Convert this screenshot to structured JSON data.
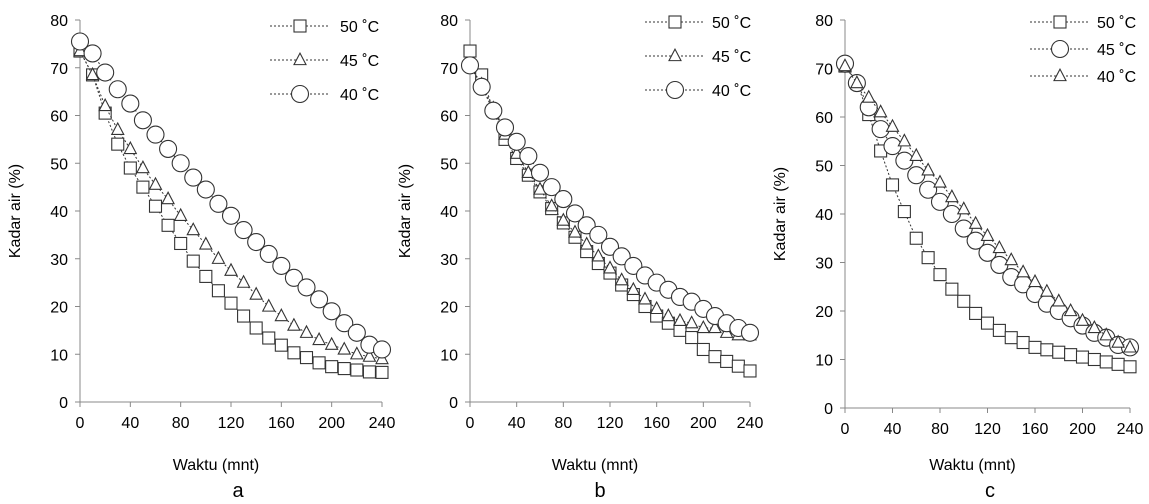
{
  "chart_data": [
    {
      "type": "line",
      "panel_label": "a",
      "xlabel": "Waktu (mnt)",
      "ylabel": "Kadar air  (%)",
      "xlim": [
        0,
        240
      ],
      "ylim": [
        0,
        80
      ],
      "xticks": [
        "0",
        "40",
        "80",
        "120",
        "160",
        "200",
        "240"
      ],
      "yticks": [
        "0",
        "10",
        "20",
        "30",
        "40",
        "50",
        "60",
        "70",
        "80"
      ],
      "legend_position": "top-right",
      "grid": false,
      "x": [
        0,
        10,
        20,
        30,
        40,
        50,
        60,
        70,
        80,
        90,
        100,
        110,
        120,
        130,
        140,
        150,
        160,
        170,
        180,
        190,
        200,
        210,
        220,
        230,
        240
      ],
      "series": [
        {
          "name": "50  ˚C",
          "marker": "square",
          "values": [
            73.5,
            68.5,
            60.5,
            54,
            49,
            45,
            41,
            37,
            33.2,
            29.5,
            26.3,
            23.3,
            20.7,
            18,
            15.5,
            13.4,
            11.9,
            10.3,
            9.3,
            8.2,
            7.4,
            7,
            6.7,
            6.3,
            6.2
          ]
        },
        {
          "name": "45 ˚C",
          "marker": "triangle",
          "values": [
            73.5,
            68.5,
            62,
            57,
            53,
            49,
            45.5,
            42.5,
            39,
            36,
            33,
            30,
            27.5,
            25,
            22.5,
            20,
            18,
            16,
            14.5,
            13,
            12,
            11,
            10,
            9.5,
            9
          ]
        },
        {
          "name": "40 ˚C",
          "marker": "circle",
          "values": [
            75.5,
            73,
            69,
            65.5,
            62.5,
            59,
            56,
            53,
            50,
            47,
            44.5,
            41.5,
            39,
            36,
            33.5,
            31,
            28.5,
            26,
            24,
            21.5,
            19,
            16.5,
            14.5,
            12,
            11
          ]
        }
      ]
    },
    {
      "type": "line",
      "panel_label": "b",
      "xlabel": "Waktu (mnt)",
      "ylabel": "Kadar air  (%)",
      "xlim": [
        0,
        240
      ],
      "ylim": [
        0,
        80
      ],
      "xticks": [
        "0",
        "40",
        "80",
        "120",
        "160",
        "200",
        "240"
      ],
      "yticks": [
        "0",
        "10",
        "20",
        "30",
        "40",
        "50",
        "60",
        "70",
        "80"
      ],
      "legend_position": "top-right",
      "grid": false,
      "x": [
        0,
        10,
        20,
        30,
        40,
        50,
        60,
        70,
        80,
        90,
        100,
        110,
        120,
        130,
        140,
        150,
        160,
        170,
        180,
        190,
        200,
        210,
        220,
        230,
        240
      ],
      "series": [
        {
          "name": "50  ˚C",
          "marker": "square",
          "values": [
            73.5,
            68.5,
            61,
            55,
            51,
            47.5,
            44,
            40.5,
            37.5,
            34.5,
            31.5,
            29,
            27,
            24.5,
            22.5,
            20,
            18,
            16.5,
            15,
            13.5,
            11,
            9.5,
            8.5,
            7.5,
            6.5
          ]
        },
        {
          "name": "45 ˚C",
          "marker": "triangle",
          "values": [
            70.5,
            66.5,
            61.5,
            56,
            52,
            48,
            44.5,
            41,
            38,
            35.5,
            33,
            30.5,
            28,
            25.5,
            23.5,
            21.5,
            19.5,
            18,
            17,
            16.5,
            15.5,
            15.5,
            14.5,
            14,
            14
          ]
        },
        {
          "name": "40 ˚C",
          "marker": "circle",
          "values": [
            70.5,
            66,
            61,
            57.5,
            54.5,
            51.5,
            48,
            45,
            42.5,
            39.5,
            37,
            35,
            32.5,
            30.5,
            28.5,
            26.5,
            25,
            23.5,
            22,
            21,
            19.5,
            18,
            16.5,
            15.5,
            14.5
          ]
        }
      ]
    },
    {
      "type": "line",
      "panel_label": "c",
      "xlabel": "Waktu (mnt)",
      "ylabel": "Kadar air  (%)",
      "xlim": [
        0,
        240
      ],
      "ylim": [
        0,
        80
      ],
      "xticks": [
        "0",
        "40",
        "80",
        "120",
        "160",
        "200",
        "240"
      ],
      "yticks": [
        "0",
        "10",
        "20",
        "30",
        "40",
        "50",
        "60",
        "70",
        "80"
      ],
      "legend_position": "top-right",
      "grid": false,
      "x": [
        0,
        10,
        20,
        30,
        40,
        50,
        60,
        70,
        80,
        90,
        100,
        110,
        120,
        130,
        140,
        150,
        160,
        170,
        180,
        190,
        200,
        210,
        220,
        230,
        240
      ],
      "series": [
        {
          "name": "50  ˚C",
          "marker": "square",
          "values": [
            70.5,
            67,
            60.5,
            53,
            46,
            40.5,
            35,
            31,
            27.5,
            24.5,
            22,
            19.5,
            17.5,
            16,
            14.5,
            13.5,
            12.5,
            12,
            11.5,
            11,
            10.5,
            10,
            9.5,
            9,
            8.5
          ]
        },
        {
          "name": "45 ˚C",
          "marker": "circle",
          "values": [
            71,
            67,
            62,
            57.5,
            54,
            51,
            48,
            45,
            42.5,
            40,
            37,
            34.5,
            32,
            29.5,
            27,
            25.5,
            23.5,
            21.5,
            20,
            18.5,
            17,
            15.5,
            14.5,
            13,
            12.5
          ]
        },
        {
          "name": "40 ˚C",
          "marker": "triangle",
          "values": [
            70.5,
            67,
            64,
            61,
            58,
            55,
            52,
            49,
            46.5,
            43.5,
            41,
            38,
            35.5,
            33,
            30.5,
            28,
            26,
            24,
            22,
            20,
            18,
            16.5,
            15,
            13.5,
            12.5
          ]
        }
      ]
    }
  ]
}
